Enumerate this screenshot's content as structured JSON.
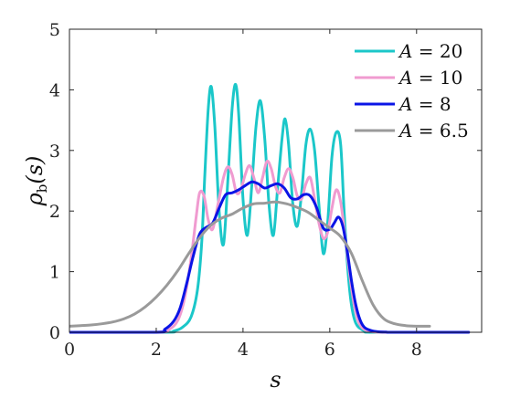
{
  "chart_data": {
    "type": "line",
    "title": "",
    "xlabel": "s",
    "ylabel": "ρ_b(s)",
    "ylabel_parts": {
      "main": "ρ",
      "sub": "b",
      "arg": "(s)"
    },
    "xlim": [
      0,
      9.5
    ],
    "ylim": [
      0,
      5
    ],
    "xticks": [
      0,
      2,
      4,
      6,
      8
    ],
    "yticks": [
      0,
      1,
      2,
      3,
      4,
      5
    ],
    "grid": false,
    "legend": {
      "position": "top-right",
      "var": "A"
    },
    "series": [
      {
        "name": "A = 20",
        "label_value": "20",
        "color": "#1bc7c9",
        "x": [
          0,
          2.2,
          2.4,
          2.6,
          2.8,
          2.95,
          3.05,
          3.12,
          3.2,
          3.27,
          3.35,
          3.45,
          3.55,
          3.65,
          3.75,
          3.83,
          3.9,
          4.0,
          4.1,
          4.2,
          4.3,
          4.4,
          4.5,
          4.6,
          4.7,
          4.8,
          4.9,
          4.97,
          5.05,
          5.15,
          5.25,
          5.35,
          5.45,
          5.55,
          5.65,
          5.75,
          5.85,
          5.95,
          6.05,
          6.15,
          6.25,
          6.33,
          6.42,
          6.5,
          6.6,
          6.75,
          6.9,
          7.0,
          9.2
        ],
        "y": [
          0,
          0,
          0.02,
          0.08,
          0.25,
          0.7,
          1.5,
          2.6,
          3.7,
          4.05,
          3.4,
          2.0,
          1.45,
          2.5,
          3.7,
          4.09,
          3.6,
          2.2,
          1.6,
          2.4,
          3.4,
          3.82,
          3.2,
          2.1,
          1.6,
          2.4,
          3.2,
          3.52,
          3.1,
          2.1,
          1.75,
          2.3,
          3.1,
          3.35,
          3.0,
          2.1,
          1.3,
          1.8,
          2.9,
          3.3,
          3.1,
          2.0,
          1.0,
          0.45,
          0.15,
          0.04,
          0.01,
          0,
          0
        ]
      },
      {
        "name": "A = 10",
        "label_value": "10",
        "color": "#f09bd0",
        "x": [
          0,
          2.0,
          2.3,
          2.5,
          2.65,
          2.8,
          2.92,
          3.0,
          3.1,
          3.2,
          3.3,
          3.42,
          3.55,
          3.65,
          3.75,
          3.85,
          3.95,
          4.05,
          4.15,
          4.25,
          4.35,
          4.45,
          4.55,
          4.65,
          4.75,
          4.85,
          4.95,
          5.05,
          5.15,
          5.25,
          5.35,
          5.45,
          5.55,
          5.65,
          5.75,
          5.85,
          5.95,
          6.05,
          6.15,
          6.25,
          6.35,
          6.45,
          6.55,
          6.65,
          6.75,
          6.9,
          7.05,
          7.3,
          9.2
        ],
        "y": [
          0,
          0,
          0.05,
          0.2,
          0.55,
          1.2,
          1.9,
          2.3,
          2.25,
          1.85,
          1.7,
          2.1,
          2.55,
          2.73,
          2.6,
          2.3,
          2.35,
          2.6,
          2.75,
          2.55,
          2.3,
          2.55,
          2.82,
          2.7,
          2.4,
          2.3,
          2.55,
          2.7,
          2.55,
          2.25,
          2.2,
          2.45,
          2.55,
          2.2,
          1.8,
          1.55,
          1.65,
          2.05,
          2.35,
          2.15,
          1.6,
          1.0,
          0.5,
          0.2,
          0.07,
          0.02,
          0.005,
          0,
          0
        ]
      },
      {
        "name": "A = 8",
        "label_value": "8",
        "color": "#0a14e6",
        "x": [
          0,
          2.0,
          2.2,
          2.4,
          2.55,
          2.7,
          2.85,
          3.0,
          3.15,
          3.3,
          3.45,
          3.6,
          3.75,
          3.9,
          4.05,
          4.2,
          4.35,
          4.5,
          4.65,
          4.8,
          4.95,
          5.1,
          5.25,
          5.4,
          5.55,
          5.7,
          5.85,
          6.0,
          6.1,
          6.2,
          6.3,
          6.4,
          6.5,
          6.6,
          6.7,
          6.8,
          6.95,
          7.1,
          7.3,
          7.5,
          9.2
        ],
        "y": [
          0,
          0,
          0.05,
          0.18,
          0.4,
          0.8,
          1.25,
          1.62,
          1.73,
          1.8,
          2.05,
          2.27,
          2.3,
          2.35,
          2.42,
          2.48,
          2.45,
          2.38,
          2.42,
          2.45,
          2.38,
          2.22,
          2.2,
          2.27,
          2.25,
          2.05,
          1.72,
          1.7,
          1.8,
          1.9,
          1.75,
          1.35,
          0.85,
          0.45,
          0.2,
          0.08,
          0.03,
          0.01,
          0.003,
          0,
          0
        ]
      },
      {
        "name": "A = 6.5",
        "label_value": "6.5",
        "color": "#9a9a9a",
        "x": [
          0,
          0.25,
          0.5,
          0.75,
          1.0,
          1.25,
          1.5,
          1.75,
          2.0,
          2.25,
          2.5,
          2.75,
          3.0,
          3.25,
          3.5,
          3.75,
          4.0,
          4.25,
          4.5,
          4.75,
          5.0,
          5.25,
          5.5,
          5.75,
          6.0,
          6.25,
          6.5,
          6.75,
          7.0,
          7.25,
          7.5,
          7.75,
          8.0,
          8.3
        ],
        "y": [
          0.1,
          0.11,
          0.12,
          0.14,
          0.17,
          0.22,
          0.3,
          0.42,
          0.58,
          0.78,
          1.02,
          1.3,
          1.56,
          1.76,
          1.88,
          1.95,
          2.05,
          2.12,
          2.13,
          2.15,
          2.12,
          2.06,
          1.98,
          1.85,
          1.72,
          1.58,
          1.3,
          0.85,
          0.45,
          0.22,
          0.14,
          0.11,
          0.1,
          0.1
        ]
      }
    ]
  }
}
